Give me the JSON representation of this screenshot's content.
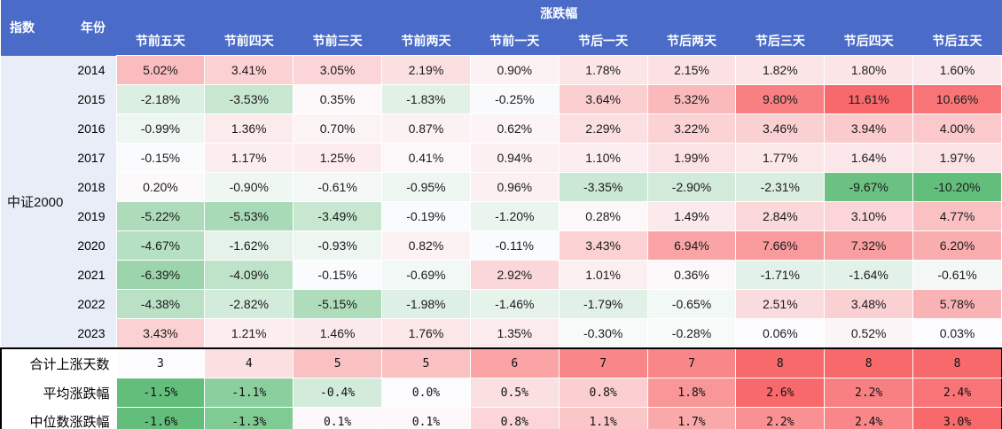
{
  "table": {
    "index_header": "指数",
    "year_header": "年份",
    "group_header": "涨跌幅",
    "index_name": "中证2000"
  },
  "colors": {
    "header_bg": "#4A6CC8",
    "header_text": "#FFFFFF",
    "index_col_bg": "#E9EDF8",
    "divider": "#000000"
  },
  "chart_data": {
    "type": "heatmap",
    "title": "涨跌幅",
    "index_name": "中证2000",
    "columns": [
      "节前五天",
      "节前四天",
      "节前三天",
      "节前两天",
      "节前一天",
      "节后一天",
      "节后两天",
      "节后三天",
      "节后四天",
      "节后五天"
    ],
    "rows": [
      {
        "year": "2014",
        "cells": [
          "5.02%",
          "3.41%",
          "3.05%",
          "2.19%",
          "0.90%",
          "1.78%",
          "2.15%",
          "1.82%",
          "1.80%",
          "1.60%"
        ]
      },
      {
        "year": "2015",
        "cells": [
          "-2.18%",
          "-3.53%",
          "0.35%",
          "-1.83%",
          "-0.25%",
          "3.64%",
          "5.32%",
          "9.80%",
          "11.61%",
          "10.66%"
        ]
      },
      {
        "year": "2016",
        "cells": [
          "-0.99%",
          "1.36%",
          "0.70%",
          "0.87%",
          "0.62%",
          "2.29%",
          "3.22%",
          "3.46%",
          "3.94%",
          "4.00%"
        ]
      },
      {
        "year": "2017",
        "cells": [
          "-0.15%",
          "1.17%",
          "1.25%",
          "0.41%",
          "0.94%",
          "1.10%",
          "1.99%",
          "1.77%",
          "1.64%",
          "1.97%"
        ]
      },
      {
        "year": "2018",
        "cells": [
          "0.20%",
          "-0.90%",
          "-0.61%",
          "-0.95%",
          "0.96%",
          "-3.35%",
          "-2.90%",
          "-2.31%",
          "-9.67%",
          "-10.20%"
        ]
      },
      {
        "year": "2019",
        "cells": [
          "-5.22%",
          "-5.53%",
          "-3.49%",
          "-0.19%",
          "-1.20%",
          "0.28%",
          "1.49%",
          "2.84%",
          "3.10%",
          "4.77%"
        ]
      },
      {
        "year": "2020",
        "cells": [
          "-4.67%",
          "-1.62%",
          "-0.93%",
          "0.82%",
          "-0.11%",
          "3.43%",
          "6.94%",
          "7.66%",
          "7.32%",
          "6.20%"
        ]
      },
      {
        "year": "2021",
        "cells": [
          "-6.39%",
          "-4.09%",
          "-0.15%",
          "-0.69%",
          "2.92%",
          "1.01%",
          "0.36%",
          "-1.71%",
          "-1.64%",
          "-0.61%"
        ]
      },
      {
        "year": "2022",
        "cells": [
          "-4.38%",
          "-2.82%",
          "-5.15%",
          "-1.98%",
          "-1.46%",
          "-1.79%",
          "-0.65%",
          "2.51%",
          "3.48%",
          "5.78%"
        ]
      },
      {
        "year": "2023",
        "cells": [
          "3.43%",
          "1.21%",
          "1.46%",
          "1.76%",
          "1.35%",
          "-0.30%",
          "-0.28%",
          "0.06%",
          "0.52%",
          "0.03%"
        ]
      }
    ],
    "summary_rows": [
      {
        "label": "合计上涨天数",
        "scale": "minmax",
        "cells": [
          "3",
          "4",
          "5",
          "5",
          "6",
          "7",
          "7",
          "8",
          "8",
          "8"
        ]
      },
      {
        "label": "平均涨跌幅",
        "scale": "zero",
        "cells": [
          "-1.5%",
          "-1.1%",
          "-0.4%",
          "0.0%",
          "0.5%",
          "0.8%",
          "1.8%",
          "2.6%",
          "2.2%",
          "2.4%"
        ]
      },
      {
        "label": "中位数涨跌幅",
        "scale": "zero",
        "cells": [
          "-1.6%",
          "-1.3%",
          "0.1%",
          "0.1%",
          "0.8%",
          "1.1%",
          "1.7%",
          "2.2%",
          "2.4%",
          "3.0%"
        ]
      }
    ],
    "color_scale": {
      "max_color": "#F8696B",
      "mid_color": "#FCFCFE",
      "min_color": "#63BE7B",
      "midpoint": 0
    }
  }
}
